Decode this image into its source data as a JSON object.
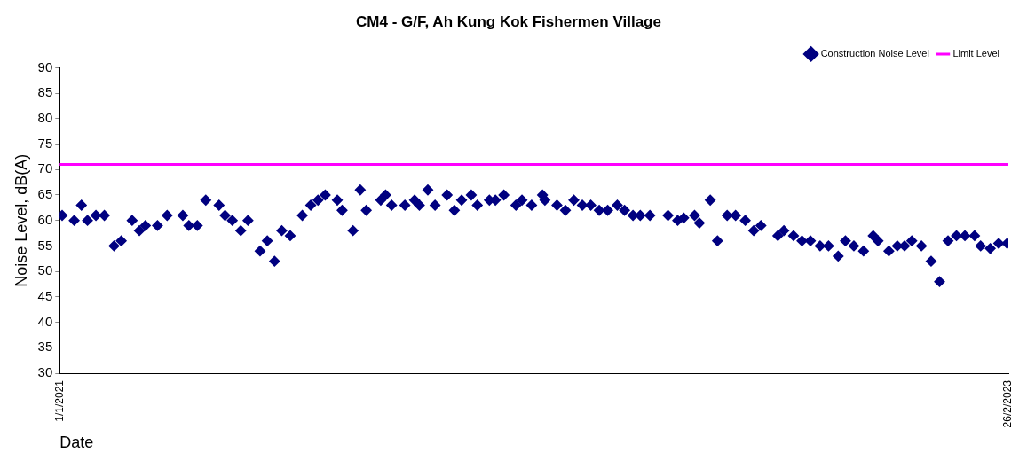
{
  "chart_data": {
    "type": "scatter",
    "title": "CM4 - G/F, Ah Kung Kok Fishermen Village",
    "xlabel": "Date",
    "ylabel": "Noise Level, dB(A)",
    "x": [
      "2021-01-03",
      "2021-01-13",
      "2021-01-19",
      "2021-01-24",
      "2021-01-31",
      "2021-02-07",
      "2021-02-15",
      "2021-02-21",
      "2021-03-02",
      "2021-03-08",
      "2021-03-13",
      "2021-03-23",
      "2021-03-31",
      "2021-04-13",
      "2021-04-18",
      "2021-04-25",
      "2021-05-02",
      "2021-05-13",
      "2021-05-18",
      "2021-05-24",
      "2021-05-31",
      "2021-06-06",
      "2021-06-16",
      "2021-06-22",
      "2021-06-28",
      "2021-07-04",
      "2021-07-11",
      "2021-07-21",
      "2021-07-28",
      "2021-08-03",
      "2021-08-09",
      "2021-08-19",
      "2021-08-23",
      "2021-09-01",
      "2021-09-07",
      "2021-09-12",
      "2021-09-24",
      "2021-09-28",
      "2021-10-03",
      "2021-10-14",
      "2021-10-22",
      "2021-10-26",
      "2021-11-02",
      "2021-11-08",
      "2021-11-18",
      "2021-11-24",
      "2021-11-30",
      "2021-12-08",
      "2021-12-13",
      "2021-12-23",
      "2021-12-28",
      "2022-01-04",
      "2022-01-14",
      "2022-01-19",
      "2022-01-27",
      "2022-02-05",
      "2022-02-07",
      "2022-02-17",
      "2022-02-24",
      "2022-03-03",
      "2022-03-10",
      "2022-03-17",
      "2022-03-24",
      "2022-03-31",
      "2022-04-08",
      "2022-04-14",
      "2022-04-21",
      "2022-04-27",
      "2022-05-05",
      "2022-05-20",
      "2022-05-28",
      "2022-06-02",
      "2022-06-11",
      "2022-06-15",
      "2022-06-24",
      "2022-06-30",
      "2022-07-08",
      "2022-07-15",
      "2022-07-23",
      "2022-07-30",
      "2022-08-05",
      "2022-08-19",
      "2022-08-24",
      "2022-09-01",
      "2022-09-08",
      "2022-09-15",
      "2022-09-23",
      "2022-09-30",
      "2022-10-08",
      "2022-10-14",
      "2022-10-21",
      "2022-10-29",
      "2022-11-06",
      "2022-11-10",
      "2022-11-19",
      "2022-11-26",
      "2022-12-02",
      "2022-12-08",
      "2022-12-16",
      "2022-12-24",
      "2022-12-31",
      "2023-01-07",
      "2023-01-14",
      "2023-01-21",
      "2023-01-29",
      "2023-02-03",
      "2023-02-11",
      "2023-02-18",
      "2023-02-25"
    ],
    "series": [
      {
        "name": "Construction Noise Level",
        "color": "#000080",
        "values": [
          61,
          60,
          63,
          60,
          61,
          61,
          55,
          56,
          60,
          58,
          59,
          59,
          61,
          61,
          59,
          59,
          64,
          63,
          61,
          60,
          58,
          60,
          54,
          56,
          52,
          58,
          57,
          61,
          63,
          64,
          65,
          64,
          62,
          58,
          66,
          62,
          64,
          65,
          63,
          63,
          64,
          63,
          66,
          63,
          65,
          62,
          64,
          65,
          63,
          64,
          64,
          65,
          63,
          64,
          63,
          65,
          64,
          63,
          62,
          64,
          63,
          63,
          62,
          62,
          63,
          62,
          61,
          61,
          61,
          61,
          60,
          60.5,
          61,
          59.5,
          64,
          56,
          61,
          61,
          60,
          58,
          59,
          57,
          58,
          57,
          56,
          56,
          55,
          55,
          53,
          56,
          55,
          54,
          57,
          56,
          54,
          55,
          55,
          56,
          55,
          52,
          48,
          56,
          57,
          57,
          57,
          55,
          54.5,
          55.5,
          55.5
        ]
      }
    ],
    "ref_lines": [
      {
        "axis": "y",
        "value": 71,
        "label": "Limit Level",
        "color": "#ff00ff",
        "line_style": "solid"
      }
    ],
    "xlim": [
      "2021-01-01",
      "2023-02-26"
    ],
    "xticks": [
      {
        "value": "2021-01-01",
        "label": "1/1/2021"
      },
      {
        "value": "2023-02-26",
        "label": "26/2/2023"
      }
    ],
    "ylim": [
      30,
      90
    ],
    "yticks": [
      30,
      35,
      40,
      45,
      50,
      55,
      60,
      65,
      70,
      75,
      80,
      85,
      90
    ],
    "grid": false,
    "legend": "top right",
    "marker": "diamond"
  }
}
